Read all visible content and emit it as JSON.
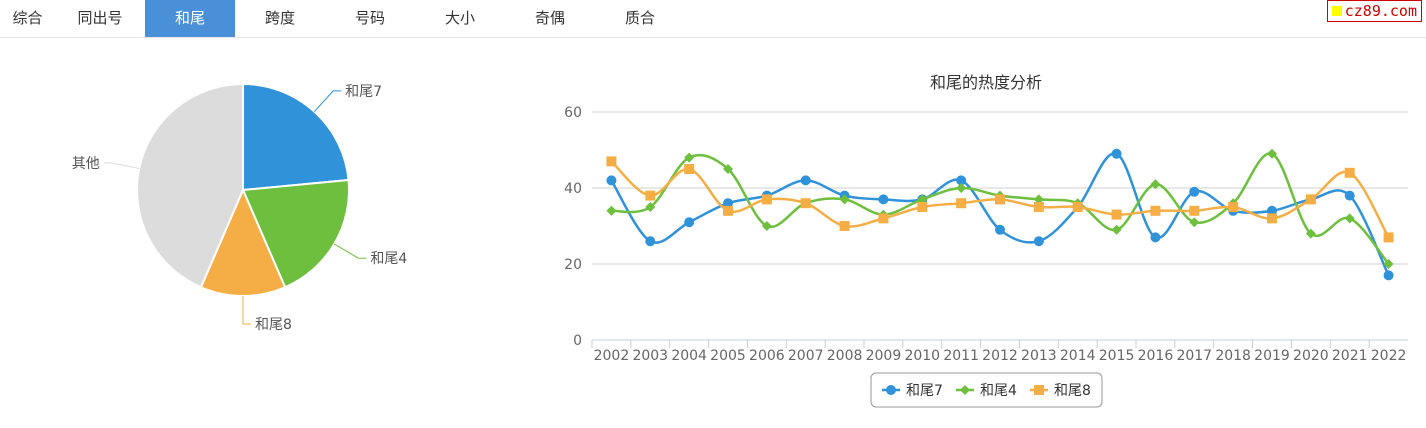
{
  "tabs": [
    "综合",
    "同出号",
    "和尾",
    "跨度",
    "号码",
    "大小",
    "奇偶",
    "质合"
  ],
  "active_tab": 2,
  "logo": "cz89.com",
  "chart_data": [
    {
      "type": "pie",
      "slices": [
        {
          "label": "和尾7",
          "percent": 23.5,
          "color": "#3092d9"
        },
        {
          "label": "和尾4",
          "percent": 20,
          "color": "#6dbf3d"
        },
        {
          "label": "和尾8",
          "percent": 13,
          "color": "#f5ae45"
        },
        {
          "label": "其他",
          "percent": 43.5,
          "color": "#dcdcdc"
        }
      ]
    },
    {
      "type": "line",
      "title": "和尾的热度分析",
      "ylim": [
        0,
        60
      ],
      "yticks": [
        0,
        20,
        40,
        60
      ],
      "grid": true,
      "legend": "bottom",
      "categories": [
        "2002",
        "2003",
        "2004",
        "2005",
        "2006",
        "2007",
        "2008",
        "2009",
        "2010",
        "2011",
        "2012",
        "2013",
        "2014",
        "2015",
        "2016",
        "2017",
        "2018",
        "2019",
        "2020",
        "2021",
        "2022"
      ],
      "series": [
        {
          "name": "和尾7",
          "color": "#3092d9",
          "marker": "circle",
          "values": [
            42,
            26,
            31,
            36,
            38,
            42,
            38,
            37,
            37,
            42,
            29,
            26,
            35,
            49,
            27,
            39,
            34,
            34,
            37,
            38,
            17
          ]
        },
        {
          "name": "和尾4",
          "color": "#6dbf3d",
          "marker": "diamond",
          "values": [
            34,
            35,
            48,
            45,
            30,
            36,
            37,
            33,
            37,
            40,
            38,
            37,
            36,
            29,
            41,
            31,
            36,
            49,
            28,
            32,
            20
          ]
        },
        {
          "name": "和尾8",
          "color": "#f5ae45",
          "marker": "square",
          "values": [
            47,
            38,
            45,
            34,
            37,
            36,
            30,
            32,
            35,
            36,
            37,
            35,
            35,
            33,
            34,
            34,
            35,
            32,
            37,
            44,
            27
          ]
        }
      ]
    }
  ]
}
